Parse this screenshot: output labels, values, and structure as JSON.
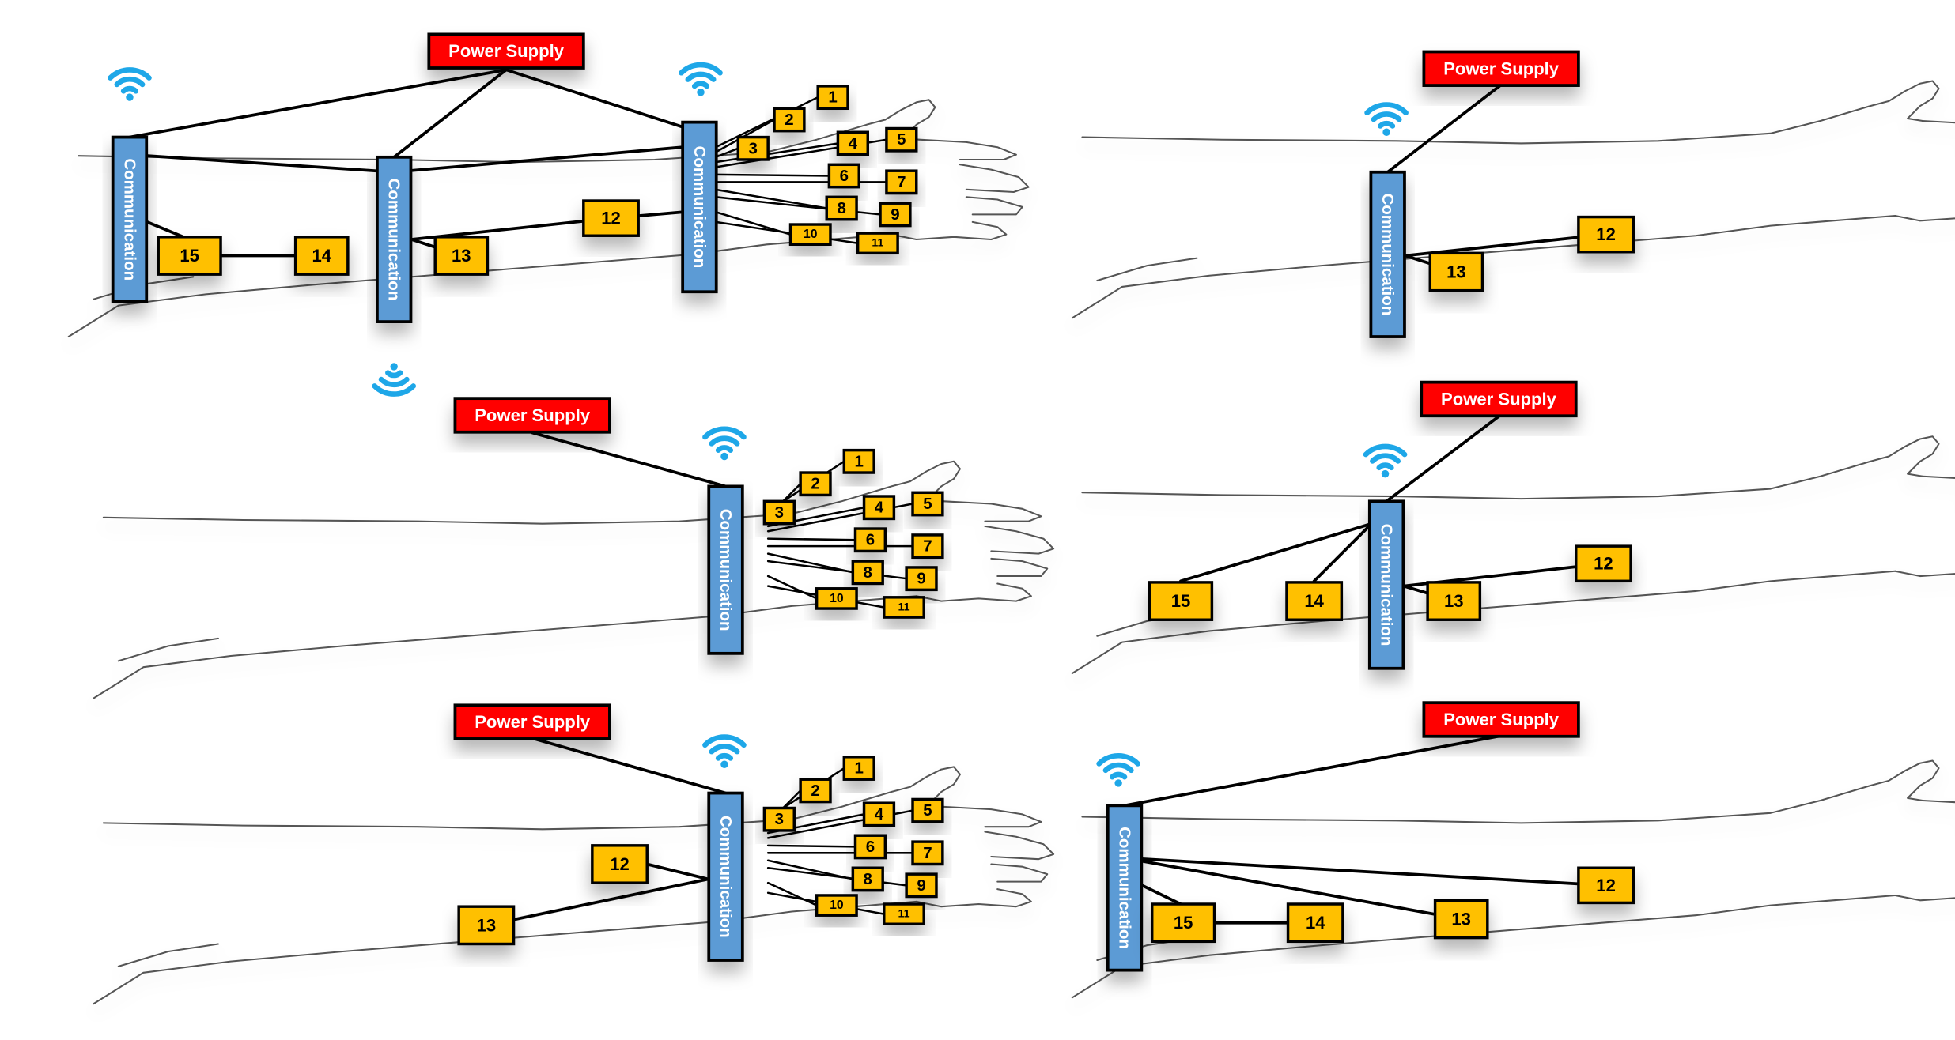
{
  "labels": {
    "power": "Power Supply",
    "communication": "Communication"
  },
  "sensor_labels": {
    "s1": "1",
    "s2": "2",
    "s3": "3",
    "s4": "4",
    "s5": "5",
    "s6": "6",
    "s7": "7",
    "s8": "8",
    "s9": "9",
    "s10": "10",
    "s11": "11",
    "s12": "12",
    "s13": "13",
    "s14": "14",
    "s15": "15"
  },
  "colors": {
    "power_fill": "#ff0000",
    "communication_fill": "#5b9bd5",
    "sensor_fill": "#ffc000",
    "wifi": "#1ea7e8",
    "wire": "#000000",
    "arm_outline": "#555555"
  },
  "icons": {
    "wireless": "wifi-icon"
  }
}
